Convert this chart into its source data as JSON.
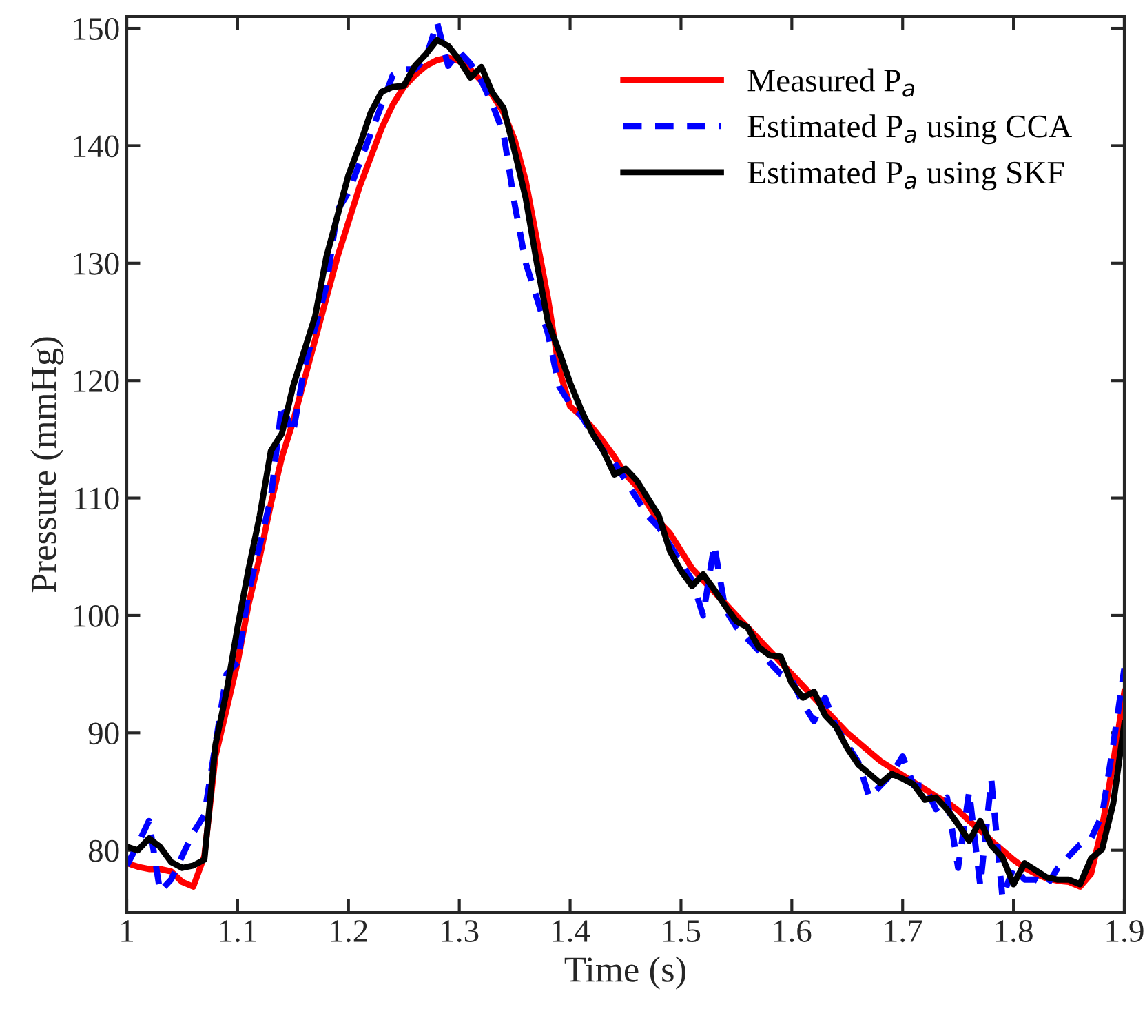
{
  "chart_data": {
    "type": "line",
    "xlabel": "Time (s)",
    "ylabel": "Pressure (mmHg)",
    "x": [
      1.0,
      1.01,
      1.02,
      1.03,
      1.04,
      1.05,
      1.06,
      1.07,
      1.08,
      1.09,
      1.1,
      1.11,
      1.12,
      1.13,
      1.14,
      1.15,
      1.16,
      1.17,
      1.18,
      1.19,
      1.2,
      1.21,
      1.22,
      1.23,
      1.24,
      1.25,
      1.26,
      1.27,
      1.28,
      1.29,
      1.3,
      1.31,
      1.32,
      1.33,
      1.34,
      1.35,
      1.36,
      1.37,
      1.38,
      1.39,
      1.4,
      1.41,
      1.42,
      1.43,
      1.44,
      1.45,
      1.46,
      1.47,
      1.48,
      1.49,
      1.5,
      1.51,
      1.52,
      1.53,
      1.54,
      1.55,
      1.56,
      1.57,
      1.58,
      1.59,
      1.6,
      1.61,
      1.62,
      1.63,
      1.64,
      1.65,
      1.66,
      1.67,
      1.68,
      1.69,
      1.7,
      1.71,
      1.72,
      1.73,
      1.74,
      1.75,
      1.76,
      1.77,
      1.78,
      1.79,
      1.8,
      1.81,
      1.82,
      1.83,
      1.84,
      1.85,
      1.86,
      1.87,
      1.88,
      1.89,
      1.9
    ],
    "series": [
      {
        "name": "Measured P$_{a}$",
        "color": "#ff0000",
        "line_style": "solid",
        "values": [
          78.9,
          78.6,
          78.4,
          78.4,
          78.2,
          77.3,
          76.9,
          79.5,
          88,
          92,
          96,
          101,
          105,
          109.5,
          113.5,
          116.5,
          120,
          123.5,
          127,
          130.5,
          133.5,
          136.5,
          139,
          141.5,
          143.5,
          145,
          146,
          146.8,
          147.3,
          147.5,
          147.2,
          146.5,
          145.5,
          144.3,
          142.8,
          140.5,
          137,
          132,
          127,
          121,
          117.8,
          117,
          116,
          114.8,
          113.5,
          112,
          111,
          109.5,
          108,
          107,
          105.5,
          104,
          103,
          102,
          101,
          100,
          99,
          98,
          97,
          96,
          95,
          94,
          93,
          92,
          91,
          90,
          89.2,
          88.4,
          87.6,
          87,
          86.4,
          85.8,
          85.2,
          84.6,
          84.1,
          83.4,
          82.5,
          81.7,
          80.8,
          80,
          79.2,
          78.5,
          78,
          77.6,
          77.4,
          77.3,
          76.9,
          78,
          82,
          87.5,
          93.5
        ]
      },
      {
        "name": "Estimated P$_{a}$ using CCA",
        "color": "#0000ff",
        "line_style": "dashed",
        "values": [
          78.7,
          80.5,
          82.5,
          76.5,
          77.5,
          79.5,
          81.5,
          83,
          89,
          95,
          96,
          102,
          106,
          110,
          118,
          115.5,
          121,
          124.5,
          128,
          134.5,
          136,
          138.5,
          141,
          143.5,
          146,
          146.5,
          146.5,
          147.5,
          150.5,
          146.8,
          148,
          147,
          145.5,
          143.5,
          141,
          135,
          130,
          127,
          124,
          119.5,
          118,
          117,
          115.5,
          114,
          113,
          111.5,
          110,
          108.5,
          107.5,
          106,
          104.5,
          103,
          100,
          106,
          100.5,
          99,
          98,
          97,
          96,
          95,
          94.5,
          92.5,
          91,
          93,
          90.5,
          89,
          87.5,
          84.5,
          85.5,
          86.5,
          88,
          85.5,
          85.5,
          83.5,
          84.5,
          78.5,
          85,
          77,
          86,
          76,
          78.5,
          77.5,
          77.5,
          77,
          78.5,
          79.5,
          80.5,
          81,
          83,
          89,
          95.5
        ]
      },
      {
        "name": "Estimated P$_{a}$ using SKF",
        "color": "#000000",
        "line_style": "solid",
        "values": [
          80.3,
          80,
          81,
          80.3,
          79,
          78.5,
          78.7,
          79.2,
          89,
          93.5,
          99,
          104,
          108.5,
          114,
          115.5,
          119.5,
          122.5,
          125.5,
          130.5,
          134,
          137.5,
          140,
          142.8,
          144.6,
          145,
          145.1,
          146.8,
          147.8,
          149,
          148.5,
          147.3,
          145.8,
          146.7,
          144.5,
          143.2,
          139.5,
          135.5,
          130,
          125,
          122.5,
          119.8,
          117.5,
          115.5,
          114,
          112,
          112.5,
          111.5,
          110,
          108.5,
          105.5,
          103.8,
          102.5,
          103.5,
          102.2,
          100.8,
          99.5,
          99,
          97.3,
          96.6,
          96.5,
          94.2,
          93,
          93.5,
          91.5,
          90.5,
          88.7,
          87.3,
          86.5,
          85.7,
          86.5,
          86.1,
          85.6,
          84.3,
          84.5,
          83.5,
          82.2,
          80.8,
          82.5,
          80.4,
          79.4,
          77.1,
          78.9,
          78.3,
          77.7,
          77.5,
          77.5,
          77.1,
          79.3,
          80.1,
          84,
          90.8
        ]
      }
    ],
    "xlim": [
      1,
      1.9
    ],
    "xticks": [
      1,
      1.1,
      1.2,
      1.3,
      1.4,
      1.5,
      1.6,
      1.7,
      1.8,
      1.9
    ],
    "ylim": [
      74.7,
      151
    ],
    "yticks": [
      80,
      90,
      100,
      110,
      120,
      130,
      140,
      150
    ],
    "legend": "top right",
    "grid": false,
    "marker": "none"
  }
}
